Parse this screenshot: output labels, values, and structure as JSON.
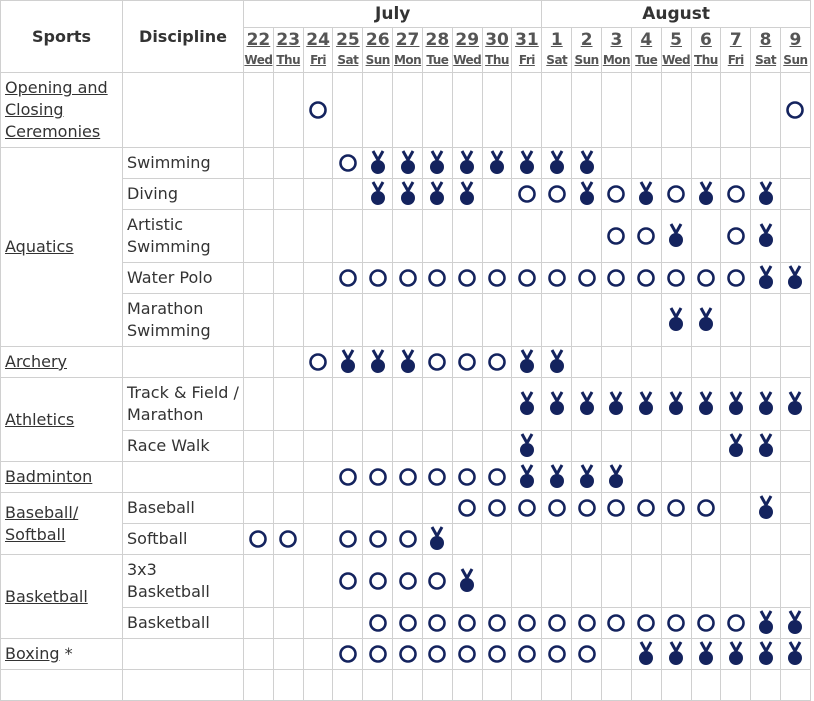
{
  "header": {
    "sports": "Sports",
    "discipline": "Discipline",
    "months": [
      {
        "name": "July",
        "days": [
          {
            "date": "22",
            "weekday": "Wed"
          },
          {
            "date": "23",
            "weekday": "Thu"
          },
          {
            "date": "24",
            "weekday": "Fri"
          },
          {
            "date": "25",
            "weekday": "Sat"
          },
          {
            "date": "26",
            "weekday": "Sun"
          },
          {
            "date": "27",
            "weekday": "Mon"
          },
          {
            "date": "28",
            "weekday": "Tue"
          },
          {
            "date": "29",
            "weekday": "Wed"
          },
          {
            "date": "30",
            "weekday": "Thu"
          },
          {
            "date": "31",
            "weekday": "Fri"
          }
        ]
      },
      {
        "name": "August",
        "days": [
          {
            "date": "1",
            "weekday": "Sat"
          },
          {
            "date": "2",
            "weekday": "Sun"
          },
          {
            "date": "3",
            "weekday": "Mon"
          },
          {
            "date": "4",
            "weekday": "Tue"
          },
          {
            "date": "5",
            "weekday": "Wed"
          },
          {
            "date": "6",
            "weekday": "Thu"
          },
          {
            "date": "7",
            "weekday": "Fri"
          },
          {
            "date": "8",
            "weekday": "Sat"
          },
          {
            "date": "9",
            "weekday": "Sun"
          }
        ]
      }
    ]
  },
  "sports": [
    {
      "name": "Opening and Closing Ceremonies",
      "disciplines": [
        {
          "schedule": [
            null,
            null,
            "O",
            null,
            null,
            null,
            null,
            null,
            null,
            null,
            null,
            null,
            null,
            null,
            null,
            null,
            null,
            null,
            "O"
          ]
        }
      ]
    },
    {
      "name": "Aquatics",
      "disciplines": [
        {
          "name": "Swimming",
          "schedule": [
            null,
            null,
            null,
            "O",
            "M",
            "M",
            "M",
            "M",
            "M",
            "M",
            "M",
            "M",
            null,
            null,
            null,
            null,
            null,
            null,
            null
          ]
        },
        {
          "name": "Diving",
          "schedule": [
            null,
            null,
            null,
            null,
            "M",
            "M",
            "M",
            "M",
            null,
            "O",
            "O",
            "M",
            "O",
            "M",
            "O",
            "M",
            "O",
            "M",
            null
          ]
        },
        {
          "name": "Artistic Swimming",
          "schedule": [
            null,
            null,
            null,
            null,
            null,
            null,
            null,
            null,
            null,
            null,
            null,
            null,
            "O",
            "O",
            "M",
            null,
            "O",
            "M",
            null
          ]
        },
        {
          "name": "Water Polo",
          "schedule": [
            null,
            null,
            null,
            "O",
            "O",
            "O",
            "O",
            "O",
            "O",
            "O",
            "O",
            "O",
            "O",
            "O",
            "O",
            "O",
            "O",
            "M",
            "M"
          ]
        },
        {
          "name": "Marathon Swimming",
          "schedule": [
            null,
            null,
            null,
            null,
            null,
            null,
            null,
            null,
            null,
            null,
            null,
            null,
            null,
            null,
            "M",
            "M",
            null,
            null,
            null
          ]
        }
      ]
    },
    {
      "name": "Archery",
      "disciplines": [
        {
          "schedule": [
            null,
            null,
            "O",
            "M",
            "M",
            "M",
            "O",
            "O",
            "O",
            "M",
            "M",
            null,
            null,
            null,
            null,
            null,
            null,
            null,
            null
          ]
        }
      ]
    },
    {
      "name": "Athletics",
      "disciplines": [
        {
          "name": "Track & Field / Marathon",
          "schedule": [
            null,
            null,
            null,
            null,
            null,
            null,
            null,
            null,
            null,
            "M",
            "M",
            "M",
            "M",
            "M",
            "M",
            "M",
            "M",
            "M",
            "M"
          ]
        },
        {
          "name": "Race Walk",
          "schedule": [
            null,
            null,
            null,
            null,
            null,
            null,
            null,
            null,
            null,
            "M",
            null,
            null,
            null,
            null,
            null,
            null,
            "M",
            "M",
            null
          ]
        }
      ]
    },
    {
      "name": "Badminton",
      "disciplines": [
        {
          "schedule": [
            null,
            null,
            null,
            "O",
            "O",
            "O",
            "O",
            "O",
            "O",
            "M",
            "M",
            "M",
            "M",
            null,
            null,
            null,
            null,
            null,
            null
          ]
        }
      ]
    },
    {
      "name": "Baseball/ Softball",
      "disciplines": [
        {
          "name": "Baseball",
          "schedule": [
            null,
            null,
            null,
            null,
            null,
            null,
            null,
            "O",
            "O",
            "O",
            "O",
            "O",
            "O",
            "O",
            "O",
            "O",
            null,
            "M",
            null
          ]
        },
        {
          "name": "Softball",
          "schedule": [
            "O",
            "O",
            null,
            "O",
            "O",
            "O",
            "M",
            null,
            null,
            null,
            null,
            null,
            null,
            null,
            null,
            null,
            null,
            null,
            null
          ]
        }
      ]
    },
    {
      "name": "Basketball",
      "disciplines": [
        {
          "name": "3x3 Basketball",
          "schedule": [
            null,
            null,
            null,
            "O",
            "O",
            "O",
            "O",
            "M",
            null,
            null,
            null,
            null,
            null,
            null,
            null,
            null,
            null,
            null,
            null
          ]
        },
        {
          "name": "Basketball",
          "schedule": [
            null,
            null,
            null,
            null,
            "O",
            "O",
            "O",
            "O",
            "O",
            "O",
            "O",
            "O",
            "O",
            "O",
            "O",
            "O",
            "O",
            "M",
            "M"
          ]
        }
      ]
    },
    {
      "name": "Boxing",
      "note": "*",
      "disciplines": [
        {
          "schedule": [
            null,
            null,
            null,
            "O",
            "O",
            "O",
            "O",
            "O",
            "O",
            "O",
            "O",
            "O",
            null,
            "M",
            "M",
            "M",
            "M",
            "M",
            "M"
          ]
        }
      ]
    }
  ]
}
